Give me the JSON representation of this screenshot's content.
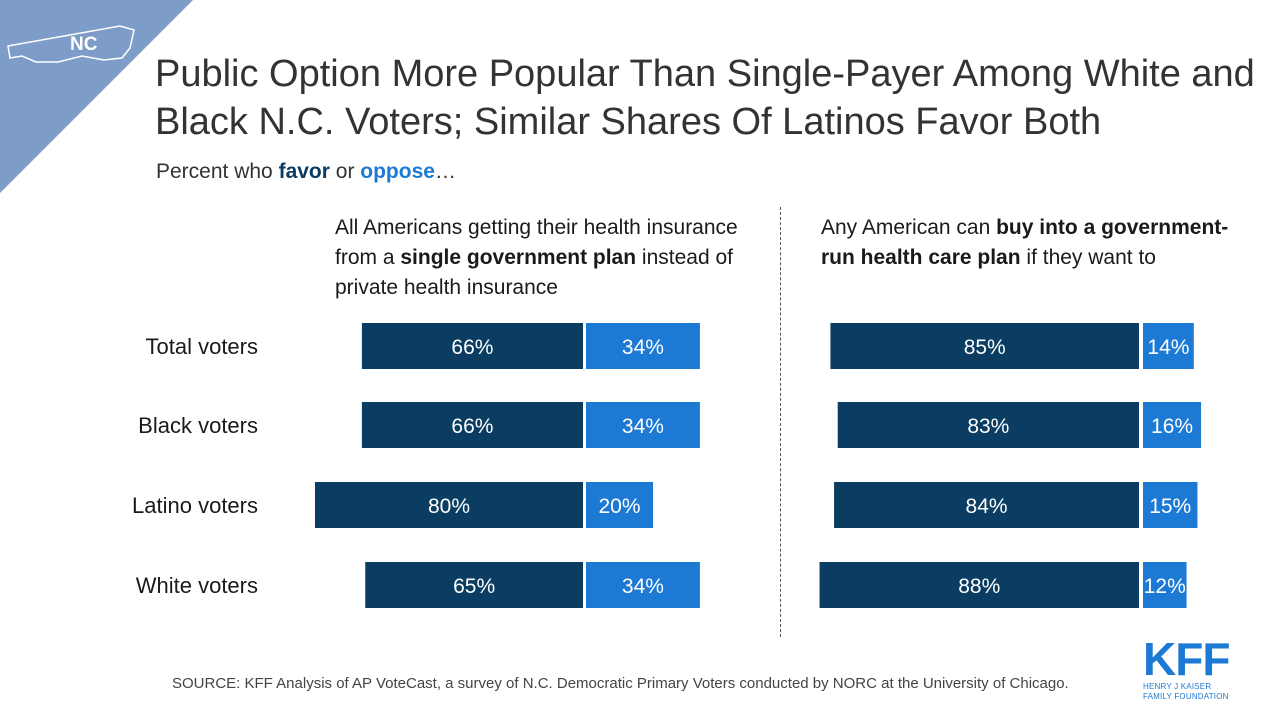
{
  "state_badge": "NC",
  "title": "Public Option More Popular Than Single-Payer Among White and Black N.C. Voters; Similar Shares Of Latinos Favor Both",
  "subtitle": {
    "prefix": "Percent who ",
    "favor": "favor",
    "middle": " or ",
    "oppose": "oppose",
    "suffix": "…"
  },
  "left_panel": {
    "heading_parts": [
      {
        "text": "All Americans getting their health insurance from a ",
        "bold": false
      },
      {
        "text": "single government plan",
        "bold": true
      },
      {
        "text": " instead of private health insurance",
        "bold": false
      }
    ]
  },
  "right_panel": {
    "heading_parts": [
      {
        "text": "Any American can ",
        "bold": false
      },
      {
        "text": "buy into a government-run health care plan",
        "bold": true
      },
      {
        "text": " if they want to",
        "bold": false
      }
    ]
  },
  "colors": {
    "favor": "#0b3d63",
    "oppose": "#1d7ad4",
    "corner": "#7d9cc8"
  },
  "chart_data": [
    {
      "type": "bar",
      "orientation": "horizontal-diverging",
      "categories": [
        "Total voters",
        "Black voters",
        "Latino voters",
        "White voters"
      ],
      "series": [
        {
          "name": "favor",
          "values": [
            66,
            66,
            80,
            65
          ],
          "labels": [
            "66%",
            "66%",
            "80%",
            "65%"
          ]
        },
        {
          "name": "oppose",
          "values": [
            34,
            34,
            20,
            34
          ],
          "labels": [
            "34%",
            "34%",
            "20%",
            "34%"
          ]
        }
      ]
    },
    {
      "type": "bar",
      "orientation": "horizontal-diverging",
      "categories": [
        "Total voters",
        "Black voters",
        "Latino voters",
        "White voters"
      ],
      "series": [
        {
          "name": "favor",
          "values": [
            85,
            83,
            84,
            88
          ],
          "labels": [
            "85%",
            "83%",
            "84%",
            "88%"
          ]
        },
        {
          "name": "oppose",
          "values": [
            14,
            16,
            15,
            12
          ],
          "labels": [
            "14%",
            "16%",
            "15%",
            "12%"
          ]
        }
      ]
    }
  ],
  "source": "SOURCE: KFF Analysis of AP VoteCast, a survey of N.C. Democratic Primary Voters conducted by NORC at the University of Chicago.",
  "logo": {
    "mark": "KFF",
    "line1": "HENRY J KAISER",
    "line2": "FAMILY FOUNDATION"
  }
}
